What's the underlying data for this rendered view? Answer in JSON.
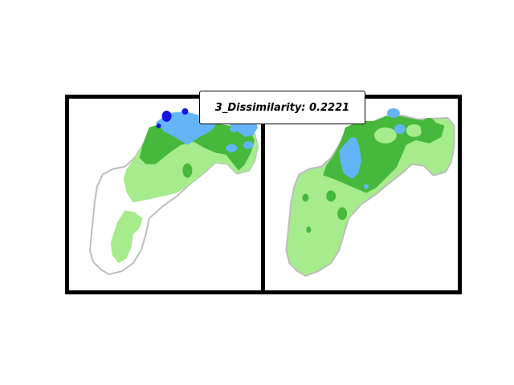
{
  "title": "3_Dissimilarity: 0.2221",
  "panels": [
    {
      "id": "left",
      "legend": []
    },
    {
      "id": "right",
      "legend": []
    }
  ],
  "colors": {
    "frame": "#000000",
    "background": "#ffffff",
    "light_green": "#a6ec8c",
    "medium_green": "#46b83c",
    "light_blue": "#64b4fa",
    "dark_blue": "#1414e6",
    "outline_gray": "#bdbdbd"
  }
}
